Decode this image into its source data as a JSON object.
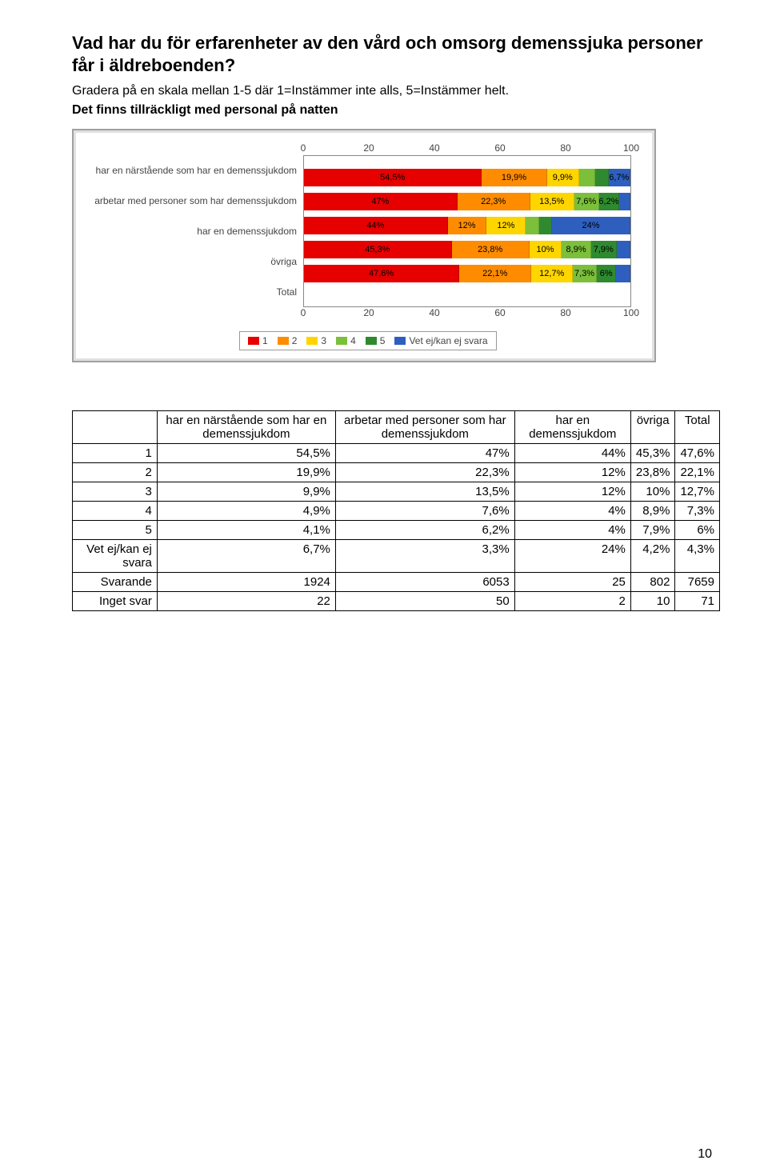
{
  "title": "Vad har du för erfarenheter av den vård och omsorg demenssjuka personer får i äldreboenden?",
  "subtitle": "Gradera på en skala mellan 1-5 där 1=Instämmer inte alls, 5=Instämmer helt.",
  "question": "Det finns tillräckligt med personal på natten",
  "colors": {
    "c1": "#e60000",
    "c2": "#ff8c00",
    "c3": "#ffd500",
    "c4": "#7bbf3a",
    "c5": "#2f8a2f",
    "c6": "#2e5fbf",
    "border": "#a0a0a0",
    "plot_border": "#888888",
    "bg_outer": "#e0e0e0",
    "bg_inner": "#ffffff",
    "text": "#444444"
  },
  "axis": {
    "ticks": [
      0,
      20,
      40,
      60,
      80,
      100
    ],
    "min": 0,
    "max": 100
  },
  "chart_rows": [
    {
      "label": "har en närstående som har en demenssjukdom",
      "segments": [
        {
          "v": 54.5,
          "t": "54,5%"
        },
        {
          "v": 19.9,
          "t": "19,9%"
        },
        {
          "v": 9.9,
          "t": "9,9%"
        },
        {
          "v": 4.9,
          "t": ""
        },
        {
          "v": 4.1,
          "t": ""
        },
        {
          "v": 6.7,
          "t": "6,7%"
        }
      ]
    },
    {
      "label": "arbetar med personer som har demenssjukdom",
      "segments": [
        {
          "v": 47.0,
          "t": "47%"
        },
        {
          "v": 22.3,
          "t": "22,3%"
        },
        {
          "v": 13.5,
          "t": "13,5%"
        },
        {
          "v": 7.6,
          "t": "7,6%"
        },
        {
          "v": 6.2,
          "t": "6,2%"
        },
        {
          "v": 3.3,
          "t": ""
        }
      ]
    },
    {
      "label": "har en demenssjukdom",
      "segments": [
        {
          "v": 44.0,
          "t": "44%"
        },
        {
          "v": 12.0,
          "t": "12%"
        },
        {
          "v": 12.0,
          "t": "12%"
        },
        {
          "v": 4.0,
          "t": ""
        },
        {
          "v": 4.0,
          "t": ""
        },
        {
          "v": 24.0,
          "t": "24%"
        }
      ]
    },
    {
      "label": "övriga",
      "segments": [
        {
          "v": 45.3,
          "t": "45,3%"
        },
        {
          "v": 23.8,
          "t": "23,8%"
        },
        {
          "v": 10.0,
          "t": "10%"
        },
        {
          "v": 8.9,
          "t": "8,9%"
        },
        {
          "v": 7.9,
          "t": "7,9%"
        },
        {
          "v": 4.2,
          "t": ""
        }
      ]
    },
    {
      "label": "Total",
      "segments": [
        {
          "v": 47.6,
          "t": "47,6%"
        },
        {
          "v": 22.1,
          "t": "22,1%"
        },
        {
          "v": 12.7,
          "t": "12,7%"
        },
        {
          "v": 7.3,
          "t": "7,3%"
        },
        {
          "v": 6.0,
          "t": "6%"
        },
        {
          "v": 4.3,
          "t": ""
        }
      ]
    }
  ],
  "legend": [
    {
      "label": "1",
      "color_key": "c1"
    },
    {
      "label": "2",
      "color_key": "c2"
    },
    {
      "label": "3",
      "color_key": "c3"
    },
    {
      "label": "4",
      "color_key": "c4"
    },
    {
      "label": "5",
      "color_key": "c5"
    },
    {
      "label": "Vet ej/kan ej svara",
      "color_key": "c6"
    }
  ],
  "table": {
    "columns": [
      "",
      "har en närstående som har en demenssjukdom",
      "arbetar med personer som har demenssjukdom",
      "har en demenssjukdom",
      "övriga",
      "Total"
    ],
    "rows": [
      [
        "1",
        "54,5%",
        "47%",
        "44%",
        "45,3%",
        "47,6%"
      ],
      [
        "2",
        "19,9%",
        "22,3%",
        "12%",
        "23,8%",
        "22,1%"
      ],
      [
        "3",
        "9,9%",
        "13,5%",
        "12%",
        "10%",
        "12,7%"
      ],
      [
        "4",
        "4,9%",
        "7,6%",
        "4%",
        "8,9%",
        "7,3%"
      ],
      [
        "5",
        "4,1%",
        "6,2%",
        "4%",
        "7,9%",
        "6%"
      ],
      [
        "Vet ej/kan ej svara",
        "6,7%",
        "3,3%",
        "24%",
        "4,2%",
        "4,3%"
      ],
      [
        "Svarande",
        "1924",
        "6053",
        "25",
        "802",
        "7659"
      ],
      [
        "Inget svar",
        "22",
        "50",
        "2",
        "10",
        "71"
      ]
    ]
  },
  "page_number": "10"
}
